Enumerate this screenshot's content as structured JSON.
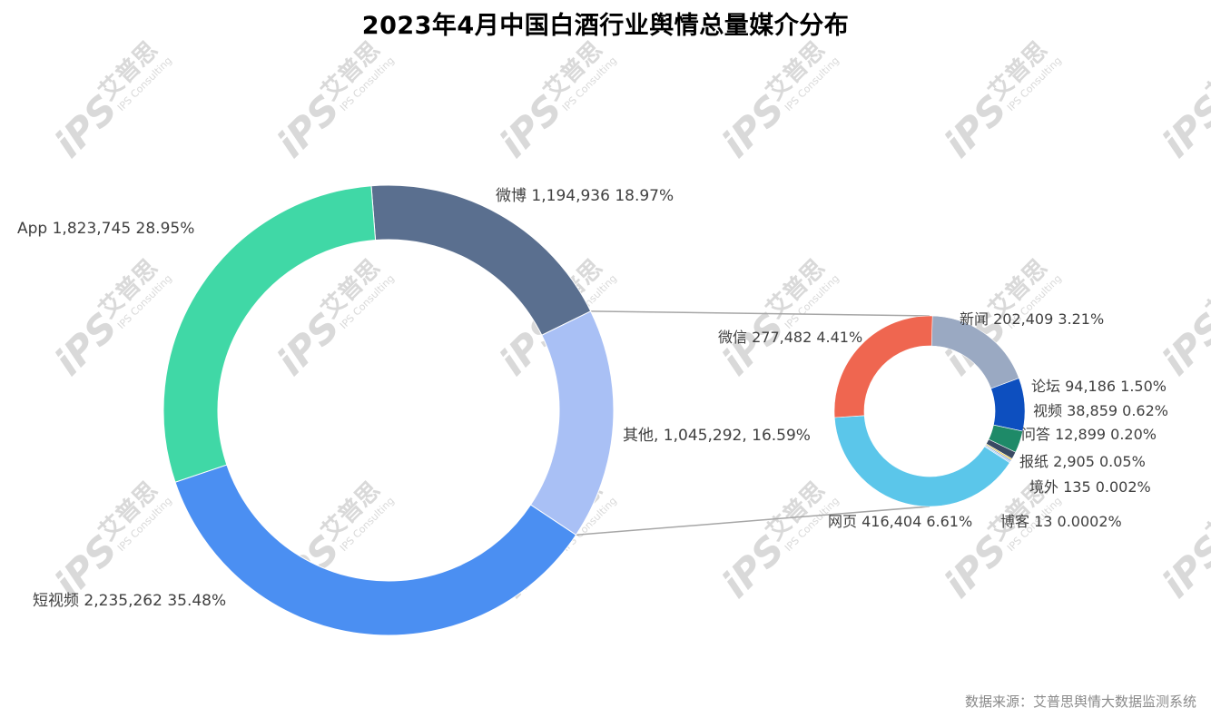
{
  "title": "2023年4月中国白酒行业舆情总量媒介分布",
  "source": "数据来源：艾普思舆情大数据监测系统",
  "watermark": {
    "brand": "iPS",
    "cn": "艾普思",
    "en": "IPS Consulting",
    "color": "#d9d9d9"
  },
  "chart_data": [
    {
      "type": "pie",
      "subtype": "donut",
      "name": "main",
      "slices": [
        {
          "label": "微博",
          "value": 1194936,
          "pct": "18.97%",
          "text": "微博 1,194,936 18.97%",
          "color": "#5a6f8f"
        },
        {
          "label": "其他",
          "value": 1045292,
          "pct": "16.59%",
          "text": "其他, 1,045,292, 16.59%",
          "color": "#a9c0f5"
        },
        {
          "label": "短视频",
          "value": 2235262,
          "pct": "35.48%",
          "text": "短视频 2,235,262 35.48%",
          "color": "#4b8ff2"
        },
        {
          "label": "App",
          "value": 1823745,
          "pct": "28.95%",
          "text": "App 1,823,745 28.95%",
          "color": "#40d8a6"
        }
      ]
    },
    {
      "type": "pie",
      "subtype": "donut",
      "name": "breakdown-of-其他",
      "slices": [
        {
          "label": "新闻",
          "value": 202409,
          "pct": "3.21%",
          "text": "新闻 202,409 3.21%",
          "color": "#9aa9c2"
        },
        {
          "label": "论坛",
          "value": 94186,
          "pct": "1.50%",
          "text": "论坛 94,186 1.50%",
          "color": "#0d4fbf"
        },
        {
          "label": "视频",
          "value": 38859,
          "pct": "0.62%",
          "text": "视频 38,859 0.62%",
          "color": "#1e8a68"
        },
        {
          "label": "问答",
          "value": 12899,
          "pct": "0.20%",
          "text": "问答 12,899 0.20%",
          "color": "#3a4a63"
        },
        {
          "label": "报纸",
          "value": 2905,
          "pct": "0.05%",
          "text": "报纸 2,905 0.05%",
          "color": "#e8c43a"
        },
        {
          "label": "境外",
          "value": 135,
          "pct": "0.002%",
          "text": "境外 135 0.002%",
          "color": "#7fa0d8"
        },
        {
          "label": "博客",
          "value": 13,
          "pct": "0.0002%",
          "text": "博客 13 0.0002%",
          "color": "#a0c9f0"
        },
        {
          "label": "网页",
          "value": 416404,
          "pct": "6.61%",
          "text": "网页 416,404 6.61%",
          "color": "#5bc6ea"
        },
        {
          "label": "微信",
          "value": 277482,
          "pct": "4.41%",
          "text": "微信 277,482 4.41%",
          "color": "#ef6650"
        }
      ]
    }
  ]
}
